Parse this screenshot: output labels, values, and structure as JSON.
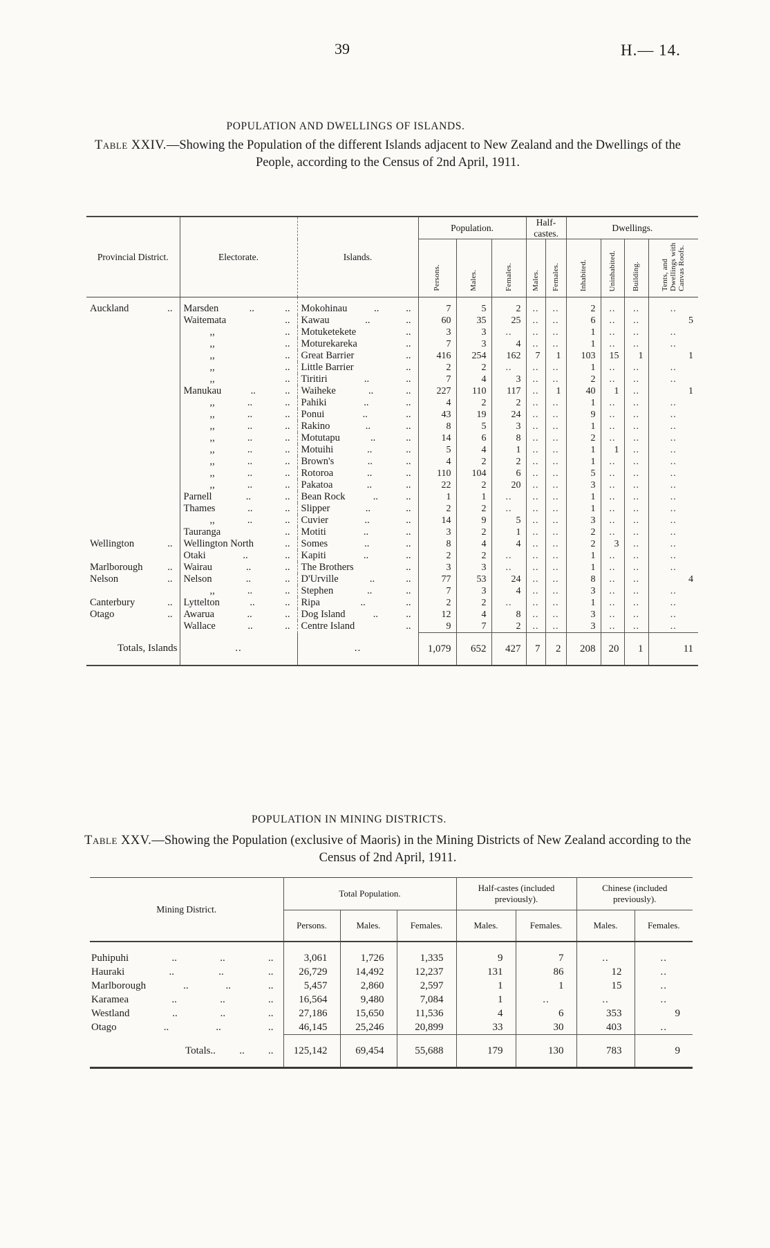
{
  "page": {
    "number": "39",
    "doc_ref": "H.— 14."
  },
  "islands_table": {
    "heading": "POPULATION AND DWELLINGS OF ISLANDS.",
    "caption_prefix": "Table XXIV.",
    "caption_rest": "—Showing the Population of the different Islands adjacent to New Zealand and the Dwellings of the People, according to the Census of 2nd April, 1911.",
    "headers": {
      "provincial_district": "Provincial District.",
      "electorate": "Electorate.",
      "islands": "Islands.",
      "population_group": "Population.",
      "half_castes_group": "Half-castes.",
      "dwellings_group": "Dwellings.",
      "sub": [
        "Persons.",
        "Males.",
        "Females.",
        "Males.",
        "Females.",
        "Inhabited.",
        "Uninhabited.",
        "Building.",
        "Tents, and Dwellings with Canvas Roofs."
      ]
    },
    "rows": [
      {
        "district": [
          "Auckland",
          ".."
        ],
        "electorate": [
          "Marsden",
          "..",
          ".."
        ],
        "island": [
          "Mokohinau",
          "..",
          ".."
        ],
        "values": [
          "7",
          "5",
          "2",
          "..",
          "..",
          "2",
          "..",
          "..",
          ".."
        ]
      },
      {
        "district": "",
        "electorate": [
          "Waitemata",
          ".."
        ],
        "island": [
          "Kawau",
          "..",
          ".."
        ],
        "values": [
          "60",
          "35",
          "25",
          "..",
          "..",
          "6",
          "..",
          "..",
          "5"
        ]
      },
      {
        "district": "",
        "electorate": [
          ",,",
          ".."
        ],
        "island": [
          "Motuketekete",
          ".."
        ],
        "values": [
          "3",
          "3",
          "..",
          "..",
          "..",
          "1",
          "..",
          "..",
          ".."
        ]
      },
      {
        "district": "",
        "electorate": [
          ",,",
          ".."
        ],
        "island": [
          "Moturekareka",
          ".."
        ],
        "values": [
          "7",
          "3",
          "4",
          "..",
          "..",
          "1",
          "..",
          "..",
          ".."
        ]
      },
      {
        "district": "",
        "electorate": [
          ",,",
          ".."
        ],
        "island": [
          "Great Barrier",
          ".."
        ],
        "values": [
          "416",
          "254",
          "162",
          "7",
          "1",
          "103",
          "15",
          "1",
          "1"
        ]
      },
      {
        "district": "",
        "electorate": [
          ",,",
          ".."
        ],
        "island": [
          "Little Barrier",
          ".."
        ],
        "values": [
          "2",
          "2",
          "..",
          "..",
          "..",
          "1",
          "..",
          "..",
          ".."
        ]
      },
      {
        "district": "",
        "electorate": [
          ",,",
          ".."
        ],
        "island": [
          "Tiritiri",
          "..",
          ".."
        ],
        "values": [
          "7",
          "4",
          "3",
          "..",
          "..",
          "2",
          "..",
          "..",
          ".."
        ]
      },
      {
        "district": "",
        "electorate": [
          "Manukau",
          "..",
          ".."
        ],
        "island": [
          "Waiheke",
          "..",
          ".."
        ],
        "values": [
          "227",
          "110",
          "117",
          "..",
          "1",
          "40",
          "1",
          "..",
          "1"
        ]
      },
      {
        "district": "",
        "electorate": [
          ",,",
          "..",
          ".."
        ],
        "island": [
          "Pahiki",
          "..",
          ".."
        ],
        "values": [
          "4",
          "2",
          "2",
          "..",
          "..",
          "1",
          "..",
          "..",
          ".."
        ]
      },
      {
        "district": "",
        "electorate": [
          ",,",
          "..",
          ".."
        ],
        "island": [
          "Ponui",
          "..",
          ".."
        ],
        "values": [
          "43",
          "19",
          "24",
          "..",
          "..",
          "9",
          "..",
          "..",
          ".."
        ]
      },
      {
        "district": "",
        "electorate": [
          ",,",
          "..",
          ".."
        ],
        "island": [
          "Rakino",
          "..",
          ".."
        ],
        "values": [
          "8",
          "5",
          "3",
          "..",
          "..",
          "1",
          "..",
          "..",
          ".."
        ]
      },
      {
        "district": "",
        "electorate": [
          ",,",
          "..",
          ".."
        ],
        "island": [
          "Motutapu",
          "..",
          ".."
        ],
        "values": [
          "14",
          "6",
          "8",
          "..",
          "..",
          "2",
          "..",
          "..",
          ".."
        ]
      },
      {
        "district": "",
        "electorate": [
          ",,",
          "..",
          ".."
        ],
        "island": [
          "Motuihi",
          "..",
          ".."
        ],
        "values": [
          "5",
          "4",
          "1",
          "..",
          "..",
          "1",
          "1",
          "..",
          ".."
        ]
      },
      {
        "district": "",
        "electorate": [
          ",,",
          "..",
          ".."
        ],
        "island": [
          "Brown's",
          "..",
          ".."
        ],
        "values": [
          "4",
          "2",
          "2",
          "..",
          "..",
          "1",
          "..",
          "..",
          ".."
        ]
      },
      {
        "district": "",
        "electorate": [
          ",,",
          "..",
          ".."
        ],
        "island": [
          "Rotoroa",
          "..",
          ".."
        ],
        "values": [
          "110",
          "104",
          "6",
          "..",
          "..",
          "5",
          "..",
          "..",
          ".."
        ]
      },
      {
        "district": "",
        "electorate": [
          ",,",
          "..",
          ".."
        ],
        "island": [
          "Pakatoa",
          "..",
          ".."
        ],
        "values": [
          "22",
          "2",
          "20",
          "..",
          "..",
          "3",
          "..",
          "..",
          ".."
        ]
      },
      {
        "district": "",
        "electorate": [
          "Parnell",
          "..",
          ".."
        ],
        "island": [
          "Bean Rock",
          "..",
          ".."
        ],
        "values": [
          "1",
          "1",
          "..",
          "..",
          "..",
          "1",
          "..",
          "..",
          ".."
        ]
      },
      {
        "district": "",
        "electorate": [
          "Thames",
          "..",
          ".."
        ],
        "island": [
          "Slipper",
          "..",
          ".."
        ],
        "values": [
          "2",
          "2",
          "..",
          "..",
          "..",
          "1",
          "..",
          "..",
          ".."
        ]
      },
      {
        "district": "",
        "electorate": [
          ",,",
          "..",
          ".."
        ],
        "island": [
          "Cuvier",
          "..",
          ".."
        ],
        "values": [
          "14",
          "9",
          "5",
          "..",
          "..",
          "3",
          "..",
          "..",
          ".."
        ]
      },
      {
        "district": "",
        "electorate": [
          "Tauranga",
          ".."
        ],
        "island": [
          "Motiti",
          "..",
          ".."
        ],
        "values": [
          "3",
          "2",
          "1",
          "..",
          "..",
          "2",
          "..",
          "..",
          ".."
        ]
      },
      {
        "district": [
          "Wellington",
          ".."
        ],
        "electorate": [
          "Wellington North",
          ".."
        ],
        "island": [
          "Somes",
          "..",
          ".."
        ],
        "values": [
          "8",
          "4",
          "4",
          "..",
          "..",
          "2",
          "3",
          "..",
          ".."
        ]
      },
      {
        "district": "",
        "electorate": [
          "Otaki",
          "..",
          ".."
        ],
        "island": [
          "Kapiti",
          "..",
          ".."
        ],
        "values": [
          "2",
          "2",
          "..",
          "..",
          "..",
          "1",
          "..",
          "..",
          ".."
        ]
      },
      {
        "district": [
          "Marlborough",
          ".."
        ],
        "electorate": [
          "Wairau",
          "..",
          ".."
        ],
        "island": [
          "The Brothers",
          ".."
        ],
        "values": [
          "3",
          "3",
          "..",
          "..",
          "..",
          "1",
          "..",
          "..",
          ".."
        ]
      },
      {
        "district": [
          "Nelson",
          ".."
        ],
        "electorate": [
          "Nelson",
          "..",
          ".."
        ],
        "island": [
          "D'Urville",
          "..",
          ".."
        ],
        "values": [
          "77",
          "53",
          "24",
          "..",
          "..",
          "8",
          "..",
          "..",
          "4"
        ]
      },
      {
        "district": "",
        "electorate": [
          ",,",
          "..",
          ".."
        ],
        "island": [
          "Stephen",
          "..",
          ".."
        ],
        "values": [
          "7",
          "3",
          "4",
          "..",
          "..",
          "3",
          "..",
          "..",
          ".."
        ]
      },
      {
        "district": [
          "Canterbury",
          ".."
        ],
        "electorate": [
          "Lyttelton",
          "..",
          ".."
        ],
        "island": [
          "Ripa",
          "..",
          ".."
        ],
        "values": [
          "2",
          "2",
          "..",
          "..",
          "..",
          "1",
          "..",
          "..",
          ".."
        ]
      },
      {
        "district": [
          "Otago",
          ".."
        ],
        "electorate": [
          "Awarua",
          "..",
          ".."
        ],
        "island": [
          "Dog Island",
          "..",
          ".."
        ],
        "values": [
          "12",
          "4",
          "8",
          "..",
          "..",
          "3",
          "..",
          "..",
          ".."
        ]
      },
      {
        "district": "",
        "electorate": [
          "Wallace",
          "..",
          ".."
        ],
        "island": [
          "Centre Island",
          ".."
        ],
        "values": [
          "9",
          "7",
          "2",
          "..",
          "..",
          "3",
          "..",
          "..",
          ".."
        ]
      }
    ],
    "totals": {
      "label": "Totals, Islands",
      "electorate_dots": "..",
      "island_dots": "..",
      "values": [
        "1,079",
        "652",
        "427",
        "7",
        "2",
        "208",
        "20",
        "1",
        "11"
      ]
    }
  },
  "mining_table": {
    "heading": "POPULATION IN MINING DISTRICTS.",
    "caption_prefix": "Table XXV.",
    "caption_rest": "—Showing the Population (exclusive of Maoris) in the Mining Districts of New Zealand according to the Census of 2nd April, 1911.",
    "headers": {
      "district": "Mining District.",
      "total_population_group": "Total Population.",
      "half_castes_group": "Half-castes (included previously).",
      "chinese_group": "Chinese (included previously).",
      "sub": [
        "Persons.",
        "Males.",
        "Females.",
        "Males.",
        "Females.",
        "Males.",
        "Females."
      ]
    },
    "rows": [
      {
        "district": [
          "Puhipuhi",
          "..",
          "..",
          ".."
        ],
        "values": [
          "3,061",
          "1,726",
          "1,335",
          "9",
          "7",
          "..",
          ".."
        ]
      },
      {
        "district": [
          "Hauraki",
          "..",
          "..",
          ".."
        ],
        "values": [
          "26,729",
          "14,492",
          "12,237",
          "131",
          "86",
          "12",
          ".."
        ]
      },
      {
        "district": [
          "Marlborough",
          "..",
          "..",
          ".."
        ],
        "values": [
          "5,457",
          "2,860",
          "2,597",
          "1",
          "1",
          "15",
          ".."
        ]
      },
      {
        "district": [
          "Karamea",
          "..",
          "..",
          ".."
        ],
        "values": [
          "16,564",
          "9,480",
          "7,084",
          "1",
          "..",
          "..",
          ".."
        ]
      },
      {
        "district": [
          "Westland",
          "..",
          "..",
          ".."
        ],
        "values": [
          "27,186",
          "15,650",
          "11,536",
          "4",
          "6",
          "353",
          "9"
        ]
      },
      {
        "district": [
          "Otago",
          "..",
          "..",
          ".."
        ],
        "values": [
          "46,145",
          "25,246",
          "20,899",
          "33",
          "30",
          "403",
          ".."
        ]
      }
    ],
    "totals": {
      "district": [
        "Totals..",
        "..",
        ".."
      ],
      "values": [
        "125,142",
        "69,454",
        "55,688",
        "179",
        "130",
        "783",
        "9"
      ]
    }
  }
}
